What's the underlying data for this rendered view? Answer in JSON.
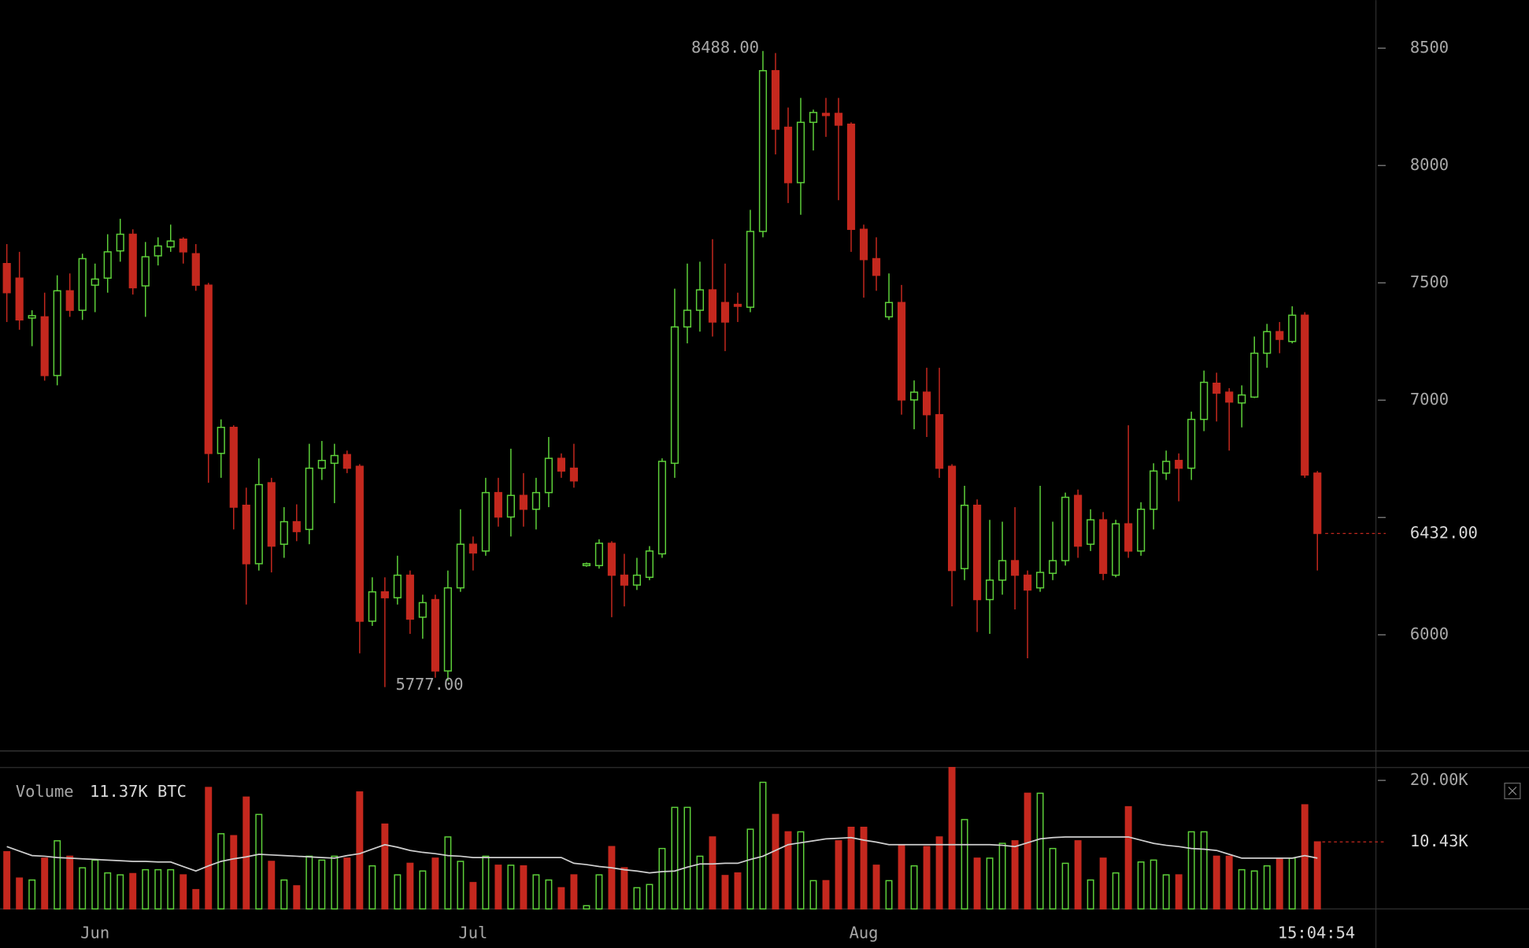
{
  "chart_data": [
    {
      "type": "candlestick",
      "categories": [
        null,
        null,
        null,
        null,
        null,
        null,
        null,
        "Jun",
        null,
        null,
        null,
        null,
        null,
        null,
        null,
        null,
        null,
        null,
        null,
        null,
        null,
        null,
        null,
        null,
        null,
        null,
        null,
        null,
        null,
        null,
        null,
        null,
        null,
        null,
        null,
        null,
        null,
        "Jul",
        null,
        null,
        null,
        null,
        null,
        null,
        null,
        null,
        null,
        null,
        null,
        null,
        null,
        null,
        null,
        null,
        null,
        null,
        null,
        null,
        null,
        null,
        null,
        null,
        null,
        null,
        null,
        null,
        null,
        null,
        "Aug",
        null,
        null,
        null,
        null,
        null,
        null,
        null,
        null,
        null,
        null,
        null,
        null,
        null,
        null,
        null,
        null,
        null,
        null,
        null,
        null,
        null,
        null,
        null,
        null,
        null,
        null,
        null,
        null,
        null,
        null,
        null,
        null,
        null,
        null,
        null,
        null
      ],
      "open": [
        7582,
        7520,
        7350,
        7355,
        7105,
        7466,
        7383,
        7490,
        7520,
        7636,
        7707,
        7487,
        7615,
        7653,
        7686,
        7624,
        7490,
        6773,
        6884,
        6552,
        6303,
        6648,
        6386,
        6482,
        6449,
        6710,
        6731,
        6768,
        6718,
        6058,
        6183,
        6158,
        6254,
        6075,
        6150,
        5846,
        6200,
        6386,
        6357,
        6606,
        6502,
        6594,
        6535,
        6606,
        6752,
        6710,
        6295,
        6295,
        6390,
        6254,
        6212,
        6245,
        6345,
        6731,
        7312,
        7383,
        7470,
        7416,
        7408,
        7396,
        7719,
        8404,
        8163,
        7927,
        8184,
        8222,
        8222,
        8176,
        7728,
        7603,
        7355,
        7416,
        7001,
        7034,
        6938,
        6718,
        6282,
        6552,
        6150,
        6233,
        6316,
        6254,
        6200,
        6262,
        6316,
        6594,
        6386,
        6490,
        6254,
        6473,
        6357,
        6535,
        6689,
        6743,
        6710,
        6918,
        7072,
        7034,
        6988,
        7013,
        7200,
        7292,
        7250,
        7362,
        6689
      ],
      "high": [
        7665,
        7632,
        7383,
        7458,
        7532,
        7540,
        7624,
        7582,
        7707,
        7773,
        7728,
        7674,
        7694,
        7748,
        7694,
        7665,
        7500,
        6918,
        6893,
        6627,
        6752,
        6669,
        6544,
        6556,
        6814,
        6826,
        6814,
        6785,
        6727,
        6245,
        6245,
        6337,
        6274,
        6171,
        6171,
        6274,
        6535,
        6419,
        6669,
        6669,
        6793,
        6689,
        6669,
        6843,
        6773,
        6814,
        6308,
        6407,
        6399,
        6345,
        6328,
        6378,
        6752,
        7475,
        7582,
        7590,
        7686,
        7582,
        7458,
        7811,
        8488,
        8479,
        8247,
        8288,
        8238,
        8288,
        8288,
        8184,
        7748,
        7694,
        7540,
        7491,
        7084,
        7138,
        7138,
        6727,
        6635,
        6577,
        6490,
        6482,
        6544,
        6274,
        6635,
        6482,
        6606,
        6619,
        6535,
        6523,
        6490,
        6893,
        6565,
        6731,
        6785,
        6773,
        6951,
        7126,
        7117,
        7051,
        7063,
        7271,
        7325,
        7333,
        7400,
        7375,
        6698
      ],
      "low": [
        7333,
        7300,
        7230,
        7083,
        7063,
        7355,
        7342,
        7375,
        7458,
        7590,
        7450,
        7355,
        7574,
        7632,
        7582,
        7466,
        6648,
        6669,
        6449,
        6129,
        6274,
        6266,
        6328,
        6399,
        6386,
        6660,
        6561,
        6689,
        5921,
        6038,
        5777,
        6129,
        6004,
        5983,
        5817,
        5805,
        6183,
        6274,
        6337,
        6461,
        6419,
        6461,
        6449,
        6544,
        6669,
        6627,
        6290,
        6282,
        6075,
        6121,
        6191,
        6233,
        6328,
        6669,
        7242,
        7292,
        7271,
        7209,
        7333,
        7375,
        7694,
        8047,
        7840,
        7790,
        8064,
        8122,
        7852,
        7632,
        7437,
        7466,
        7342,
        6938,
        6876,
        6843,
        6669,
        6121,
        6233,
        6012,
        6004,
        6171,
        6108,
        5900,
        6183,
        6233,
        6295,
        6328,
        6357,
        6233,
        6245,
        6328,
        6337,
        6449,
        6660,
        6569,
        6660,
        6868,
        6909,
        6785,
        6884,
        7009,
        7138,
        7200,
        7242,
        6669,
        6274
      ],
      "close": [
        7458,
        7342,
        7360,
        7105,
        7466,
        7383,
        7603,
        7516,
        7632,
        7707,
        7479,
        7611,
        7657,
        7678,
        7632,
        7490,
        6773,
        6884,
        6544,
        6303,
        6640,
        6378,
        6482,
        6440,
        6710,
        6743,
        6764,
        6710,
        6058,
        6183,
        6158,
        6254,
        6067,
        6137,
        5846,
        6200,
        6386,
        6349,
        6606,
        6502,
        6594,
        6535,
        6606,
        6752,
        6698,
        6656,
        6303,
        6390,
        6254,
        6212,
        6254,
        6357,
        6739,
        7312,
        7383,
        7470,
        7333,
        7333,
        7400,
        7719,
        8404,
        8155,
        7927,
        8184,
        8226,
        8213,
        8172,
        7728,
        7599,
        7532,
        7416,
        7001,
        7034,
        6938,
        6710,
        6274,
        6552,
        6150,
        6233,
        6316,
        6254,
        6191,
        6266,
        6316,
        6586,
        6378,
        6490,
        6262,
        6473,
        6357,
        6535,
        6698,
        6739,
        6710,
        6918,
        7076,
        7030,
        6992,
        7022,
        7200,
        7292,
        7259,
        7362,
        6681,
        6432
      ],
      "up_color": "#5ed13a",
      "down_color": "#c4281e",
      "ylim": [
        5505,
        8705
      ],
      "yticks": [
        6000,
        {
          "value": 6500,
          "label": null
        },
        7000,
        7500,
        8000,
        8500
      ],
      "high_label": {
        "value": 8488,
        "label": "8488.00"
      },
      "low_label": {
        "value": 5777,
        "label": "5777.00"
      },
      "last_label": {
        "value": 6432,
        "label": "6432.00"
      }
    },
    {
      "type": "volume",
      "name": "Volume",
      "legend_value": "11.37K BTC",
      "values": [
        8900,
        4800,
        4500,
        7900,
        10600,
        8200,
        6400,
        7600,
        5600,
        5300,
        5500,
        6100,
        6100,
        6100,
        5300,
        3000,
        18900,
        11700,
        11400,
        17400,
        14700,
        7400,
        4500,
        3600,
        8200,
        7600,
        8200,
        7900,
        18200,
        6700,
        13200,
        5300,
        7100,
        5900,
        7900,
        11200,
        7400,
        4100,
        8200,
        6800,
        6800,
        6700,
        5300,
        4500,
        3300,
        5300,
        500,
        5300,
        9700,
        6400,
        3300,
        3800,
        9400,
        15800,
        15800,
        8200,
        11200,
        5200,
        5600,
        12400,
        19700,
        14700,
        12000,
        12000,
        4400,
        4400,
        10600,
        12700,
        12700,
        6800,
        4400,
        10000,
        6700,
        9700,
        11200,
        22000,
        13900,
        7900,
        7900,
        10200,
        10600,
        18000,
        18000,
        9400,
        7100,
        10600,
        4500,
        7900,
        5600,
        15900,
        7300,
        7600,
        5300,
        5300,
        12000,
        12000,
        8200,
        8200,
        6100,
        5900,
        6700,
        7900,
        7900,
        16200,
        10430
      ],
      "ma": [
        9700,
        9000,
        8300,
        8200,
        8000,
        7900,
        7800,
        7700,
        7600,
        7500,
        7400,
        7400,
        7300,
        7300,
        6600,
        5900,
        6700,
        7400,
        7800,
        8100,
        8500,
        8400,
        8300,
        8200,
        8100,
        8000,
        7900,
        8300,
        8600,
        9300,
        10000,
        9600,
        9100,
        8800,
        8600,
        8300,
        8200,
        8000,
        8000,
        8000,
        8000,
        8000,
        8000,
        8000,
        8000,
        7100,
        6900,
        6600,
        6400,
        6100,
        5900,
        5600,
        5800,
        5900,
        6500,
        7000,
        7000,
        7100,
        7100,
        7700,
        8200,
        9100,
        10000,
        10300,
        10600,
        10900,
        11000,
        11100,
        10700,
        10400,
        10000,
        10000,
        10000,
        10000,
        10000,
        10000,
        10000,
        10000,
        10000,
        9900,
        9700,
        10300,
        10900,
        11100,
        11200,
        11200,
        11200,
        11200,
        11200,
        11200,
        10700,
        10200,
        9900,
        9700,
        9400,
        9300,
        9100,
        8500,
        7900,
        7900,
        7900,
        7900,
        7900,
        8300,
        7900
      ],
      "ma_color": "#cfcfcf",
      "ylim": [
        0,
        22000
      ],
      "yticks": [
        {
          "value": 20000,
          "label": "20.00K"
        }
      ],
      "last_label": {
        "value": 10430,
        "label": "10.43K"
      }
    }
  ],
  "clock": "15:04:54"
}
